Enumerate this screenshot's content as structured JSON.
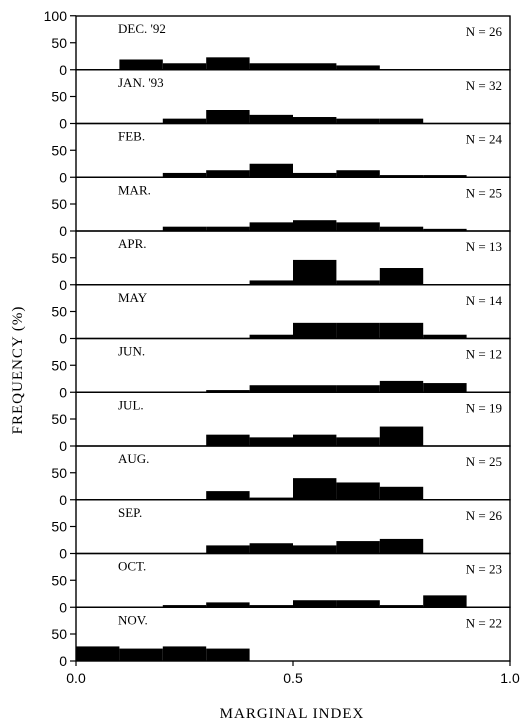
{
  "chart_data": {
    "type": "bar",
    "xlabel": "MARGINAL INDEX",
    "ylabel": "FREQUENCY (%)",
    "xlim": [
      0,
      1
    ],
    "ylim": [
      0,
      100
    ],
    "bin_width": 0.1,
    "bin_starts": [
      0.0,
      0.1,
      0.2,
      0.3,
      0.4,
      0.5,
      0.6,
      0.7,
      0.8,
      0.9
    ],
    "x_ticks": [
      "0.0",
      "0.5",
      "1.0"
    ],
    "y_ticks_top": [
      "100",
      "50",
      "0"
    ],
    "y_ticks": [
      "50",
      "0"
    ],
    "panels": [
      {
        "month": "DEC. '92",
        "n": "N = 26",
        "values": [
          0,
          19,
          12,
          23,
          12,
          12,
          8,
          0,
          0,
          0
        ]
      },
      {
        "month": "JAN. '93",
        "n": "N = 32",
        "values": [
          0,
          0,
          9,
          25,
          16,
          12,
          9,
          9,
          0,
          0
        ]
      },
      {
        "month": "FEB.",
        "n": "N = 24",
        "values": [
          0,
          0,
          8,
          13,
          25,
          8,
          13,
          4,
          4,
          0
        ]
      },
      {
        "month": "MAR.",
        "n": "N = 25",
        "values": [
          0,
          0,
          8,
          8,
          16,
          20,
          16,
          8,
          4,
          0
        ]
      },
      {
        "month": "APR.",
        "n": "N = 13",
        "values": [
          0,
          0,
          0,
          0,
          8,
          46,
          8,
          31,
          0,
          0
        ]
      },
      {
        "month": "MAY",
        "n": "N = 14",
        "values": [
          0,
          0,
          0,
          0,
          7,
          29,
          29,
          29,
          7,
          0
        ]
      },
      {
        "month": "JUN.",
        "n": "N = 12",
        "values": [
          0,
          0,
          0,
          4,
          13,
          13,
          13,
          21,
          17,
          0
        ]
      },
      {
        "month": "JUL.",
        "n": "N = 19",
        "values": [
          0,
          0,
          0,
          21,
          16,
          21,
          16,
          36,
          0,
          0
        ]
      },
      {
        "month": "AUG.",
        "n": "N = 25",
        "values": [
          0,
          0,
          0,
          16,
          4,
          40,
          32,
          24,
          0,
          0
        ]
      },
      {
        "month": "SEP.",
        "n": "N = 26",
        "values": [
          0,
          0,
          0,
          15,
          19,
          15,
          23,
          27,
          0,
          0
        ]
      },
      {
        "month": "OCT.",
        "n": "N = 23",
        "values": [
          0,
          0,
          4,
          9,
          4,
          13,
          13,
          4,
          22,
          0
        ]
      },
      {
        "month": "NOV.",
        "n": "N = 22",
        "values": [
          27,
          23,
          27,
          23,
          0,
          0,
          0,
          0,
          0,
          0
        ]
      }
    ]
  }
}
